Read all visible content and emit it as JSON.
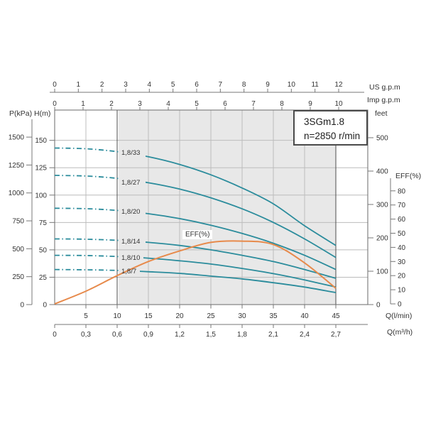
{
  "title_box": {
    "model": "3SGm1.8",
    "speed": "n=2850 r/min"
  },
  "axes": {
    "us_gpm": {
      "label": "US  g.p.m",
      "ticks": [
        "0",
        "1",
        "2",
        "3",
        "4",
        "5",
        "6",
        "7",
        "8",
        "9",
        "10",
        "11",
        "12"
      ]
    },
    "imp_gpm": {
      "label": "Imp  g.p.m",
      "ticks": [
        "0",
        "1",
        "2",
        "3",
        "4",
        "5",
        "6",
        "7",
        "8",
        "9",
        "10"
      ]
    },
    "p_kpa": {
      "label": "P(kPa)",
      "ticks": [
        "0",
        "250",
        "500",
        "750",
        "1000",
        "1250",
        "1500"
      ]
    },
    "h_m": {
      "label": "H(m)",
      "ticks": [
        "0",
        "25",
        "50",
        "75",
        "100",
        "125",
        "150"
      ]
    },
    "feet": {
      "label": "feet",
      "ticks": [
        "0",
        "100",
        "200",
        "300",
        "400",
        "500"
      ]
    },
    "eff": {
      "label": "EFF(%)",
      "ticks": [
        "0",
        "10",
        "20",
        "30",
        "40",
        "50",
        "60",
        "70",
        "80"
      ]
    },
    "q_lmin": {
      "label": "Q(l/min)",
      "ticks": [
        "5",
        "10",
        "15",
        "20",
        "25",
        "30",
        "35",
        "40",
        "45"
      ]
    },
    "q_m3h": {
      "label": "Q(m³/h)",
      "ticks": [
        "0",
        "0,3",
        "0,6",
        "0,9",
        "1,2",
        "1,5",
        "1,8",
        "2,1",
        "2,4",
        "2,7"
      ]
    }
  },
  "chart_data": {
    "type": "line",
    "title": "3SGm1.8",
    "subtitle": "n=2850 r/min",
    "xlabel": "Q(l/min) / Q(m³/h)",
    "ylabel_left": "H(m) / P(kPa)",
    "ylabel_right": "feet / EFF(%)",
    "x": [
      0,
      5,
      10,
      15,
      20,
      25,
      30,
      35,
      40,
      45
    ],
    "x_unit": "l/min",
    "xlim": [
      0,
      50
    ],
    "ylim_head_m": [
      0,
      178
    ],
    "ylim_eff_pct": [
      0,
      90
    ],
    "duty_range_lmin": [
      10,
      45
    ],
    "grid": true,
    "series": [
      {
        "name": "1,8/33",
        "unit": "m",
        "axis": "head",
        "values": [
          143,
          142.3,
          139.7,
          135,
          128,
          118.5,
          106.5,
          92,
          72,
          54
        ]
      },
      {
        "name": "1,8/27",
        "unit": "m",
        "axis": "head",
        "values": [
          118,
          117.4,
          115.3,
          111.3,
          105.5,
          97.5,
          87.5,
          75,
          60,
          43
        ]
      },
      {
        "name": "1,8/20",
        "unit": "m",
        "axis": "head",
        "values": [
          88,
          87.6,
          86,
          83,
          78.5,
          72.5,
          65,
          56,
          45,
          32
        ]
      },
      {
        "name": "1,8/14",
        "unit": "m",
        "axis": "head",
        "values": [
          60,
          59.7,
          58.7,
          56.8,
          54,
          50,
          45,
          39.3,
          32,
          24
        ]
      },
      {
        "name": "1,8/10",
        "unit": "m",
        "axis": "head",
        "values": [
          45,
          44.8,
          43.9,
          42.4,
          40,
          37,
          33,
          28.3,
          22.5,
          16
        ]
      },
      {
        "name": "1,8/7",
        "unit": "m",
        "axis": "head",
        "values": [
          32,
          31.8,
          31.2,
          30,
          28.5,
          26,
          23.5,
          20,
          16,
          11
        ]
      },
      {
        "name": "EFF(%)",
        "unit": "%",
        "axis": "eff",
        "values": [
          0,
          9,
          20,
          30,
          37.5,
          43.5,
          44.4,
          42,
          29,
          11
        ]
      }
    ]
  },
  "colors": {
    "head_curve": "#2b8c9c",
    "eff_curve": "#e78a4b",
    "shade": "#e8e8e8",
    "shade_border": "#4d4d4d",
    "grid": "#bcbcbc",
    "axis": "#777777",
    "plot_border": "#6a6a6a",
    "text": "#333333"
  }
}
